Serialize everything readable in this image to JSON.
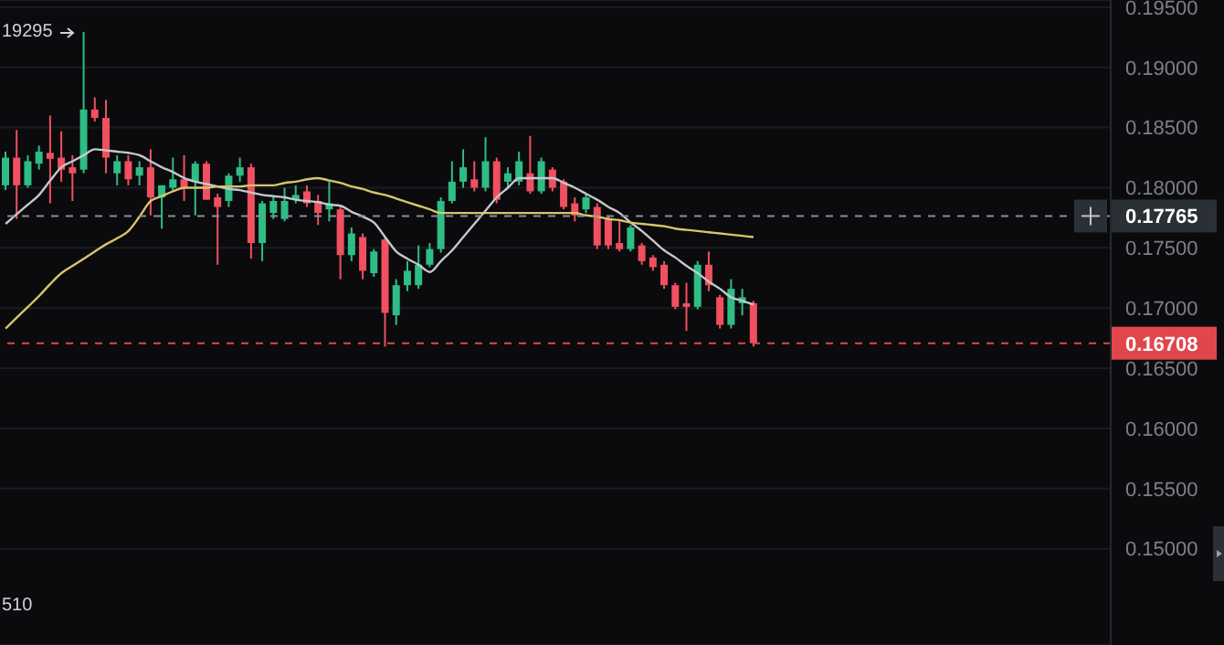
{
  "chart_data": {
    "type": "candlestick",
    "categories": [
      null,
      null,
      null,
      null,
      null,
      null,
      null,
      null,
      null,
      null,
      null,
      null,
      null,
      null,
      null,
      null,
      null,
      null,
      null,
      null,
      null,
      null,
      null,
      null,
      null,
      null,
      null,
      null,
      null,
      null,
      null,
      null,
      null,
      null,
      null,
      null,
      null,
      null,
      null,
      null,
      null,
      null,
      null,
      null,
      null,
      null,
      null,
      null,
      null,
      null,
      null,
      null,
      null,
      null,
      null,
      null,
      null,
      null,
      null,
      null,
      null,
      null,
      null,
      null,
      null,
      null,
      null,
      null
    ],
    "ohlc": [
      [
        0.1802,
        0.183,
        0.1798,
        0.1825
      ],
      [
        0.1825,
        0.1848,
        0.1774,
        0.1802
      ],
      [
        0.1802,
        0.1827,
        0.18,
        0.1822
      ],
      [
        0.182,
        0.1835,
        0.1815,
        0.183
      ],
      [
        0.1829,
        0.186,
        0.1787,
        0.1824
      ],
      [
        0.1825,
        0.1847,
        0.1805,
        0.1815
      ],
      [
        0.1817,
        0.1827,
        0.1789,
        0.1812
      ],
      [
        0.1815,
        0.19295,
        0.1812,
        0.1865
      ],
      [
        0.1865,
        0.1875,
        0.1855,
        0.1858
      ],
      [
        0.1858,
        0.1873,
        0.1812,
        0.1825
      ],
      [
        0.1812,
        0.1827,
        0.1802,
        0.1822
      ],
      [
        0.1822,
        0.1827,
        0.1802,
        0.1807
      ],
      [
        0.181,
        0.1822,
        0.1802,
        0.1817
      ],
      [
        0.1817,
        0.1832,
        0.1777,
        0.1792
      ],
      [
        0.1792,
        0.1802,
        0.1766,
        0.1802
      ],
      [
        0.18,
        0.1825,
        0.1797,
        0.1807
      ],
      [
        0.1807,
        0.1827,
        0.1789,
        0.18
      ],
      [
        0.1805,
        0.1822,
        0.1777,
        0.182
      ],
      [
        0.182,
        0.1822,
        0.179,
        0.179
      ],
      [
        0.1792,
        0.1795,
        0.1736,
        0.1784
      ],
      [
        0.1789,
        0.1812,
        0.1784,
        0.181
      ],
      [
        0.181,
        0.1825,
        0.1805,
        0.1817
      ],
      [
        0.1817,
        0.182,
        0.1741,
        0.1754
      ],
      [
        0.1754,
        0.1789,
        0.1739,
        0.1787
      ],
      [
        0.1779,
        0.1792,
        0.1774,
        0.1789
      ],
      [
        0.1774,
        0.18,
        0.1772,
        0.1789
      ],
      [
        0.179,
        0.1802,
        0.1787,
        0.1794
      ],
      [
        0.1797,
        0.1802,
        0.1784,
        0.1787
      ],
      [
        0.1789,
        0.1794,
        0.1769,
        0.1779
      ],
      [
        0.1782,
        0.1805,
        0.1772,
        0.1787
      ],
      [
        0.1782,
        0.1784,
        0.1724,
        0.1744
      ],
      [
        0.1744,
        0.1767,
        0.1739,
        0.1762
      ],
      [
        0.1759,
        0.1762,
        0.1724,
        0.1731
      ],
      [
        0.1729,
        0.1749,
        0.1726,
        0.1747
      ],
      [
        0.1757,
        0.1759,
        0.1668,
        0.1696
      ],
      [
        0.1694,
        0.1724,
        0.1686,
        0.1719
      ],
      [
        0.1719,
        0.1739,
        0.1714,
        0.1731
      ],
      [
        0.1719,
        0.1752,
        0.1716,
        0.1736
      ],
      [
        0.1736,
        0.1754,
        0.1734,
        0.1749
      ],
      [
        0.1749,
        0.1792,
        0.1746,
        0.1789
      ],
      [
        0.1789,
        0.1822,
        0.1787,
        0.1805
      ],
      [
        0.1805,
        0.1832,
        0.18,
        0.1817
      ],
      [
        0.1807,
        0.1822,
        0.1797,
        0.18
      ],
      [
        0.18,
        0.1842,
        0.1797,
        0.1822
      ],
      [
        0.1822,
        0.1825,
        0.1787,
        0.179
      ],
      [
        0.1805,
        0.1817,
        0.18,
        0.1812
      ],
      [
        0.1805,
        0.183,
        0.1802,
        0.1822
      ],
      [
        0.1812,
        0.1843,
        0.1795,
        0.1797
      ],
      [
        0.1797,
        0.1825,
        0.1795,
        0.1822
      ],
      [
        0.1815,
        0.1817,
        0.1797,
        0.18
      ],
      [
        0.1805,
        0.1807,
        0.1782,
        0.1784
      ],
      [
        0.1787,
        0.1792,
        0.1772,
        0.1777
      ],
      [
        0.1782,
        0.1795,
        0.1779,
        0.1792
      ],
      [
        0.1784,
        0.1787,
        0.1749,
        0.1752
      ],
      [
        0.1774,
        0.1777,
        0.1749,
        0.1752
      ],
      [
        0.1754,
        0.1772,
        0.1747,
        0.1749
      ],
      [
        0.1749,
        0.1769,
        0.1747,
        0.1767
      ],
      [
        0.1752,
        0.1754,
        0.1736,
        0.1739
      ],
      [
        0.1742,
        0.1744,
        0.1731,
        0.1734
      ],
      [
        0.1736,
        0.1739,
        0.1716,
        0.1719
      ],
      [
        0.1719,
        0.1721,
        0.1699,
        0.1701
      ],
      [
        0.1704,
        0.1721,
        0.1681,
        0.1701
      ],
      [
        0.1701,
        0.1739,
        0.1699,
        0.1736
      ],
      [
        0.1736,
        0.1747,
        0.1714,
        0.1719
      ],
      [
        0.1709,
        0.1711,
        0.1683,
        0.1686
      ],
      [
        0.1686,
        0.1724,
        0.1683,
        0.1716
      ],
      [
        0.1704,
        0.1716,
        0.1694,
        0.1709
      ],
      [
        0.1704,
        0.1706,
        0.1668,
        0.16708
      ]
    ],
    "series": [
      {
        "type": "line",
        "color": "#c4c7cc",
        "values": [
          0.177,
          0.1778,
          0.1786,
          0.1794,
          0.1806,
          0.1817,
          0.1822,
          0.1827,
          0.1832,
          0.1831,
          0.183,
          0.1829,
          0.1827,
          0.1822,
          0.1817,
          0.1813,
          0.1808,
          0.1805,
          0.1803,
          0.1801,
          0.1799,
          0.1798,
          0.1796,
          0.1794,
          0.1793,
          0.1792,
          0.179,
          0.1789,
          0.1788,
          0.1786,
          0.1785,
          0.178,
          0.1776,
          0.1771,
          0.1759,
          0.1747,
          0.1741,
          0.1736,
          0.173,
          0.1739,
          0.1748,
          0.1759,
          0.177,
          0.1781,
          0.1792,
          0.18,
          0.1808,
          0.1808,
          0.1808,
          0.1808,
          0.1804,
          0.18,
          0.1795,
          0.179,
          0.1784,
          0.1779,
          0.1771,
          0.1764,
          0.1756,
          0.1748,
          0.1742,
          0.1735,
          0.1729,
          0.1722,
          0.1716,
          0.1709,
          0.1706,
          0.1703
        ]
      },
      {
        "type": "line",
        "color": "#d6c56c",
        "values": [
          0.1683,
          0.1692,
          0.1701,
          0.171,
          0.172,
          0.1729,
          0.1735,
          0.1741,
          0.1747,
          0.1753,
          0.1758,
          0.1764,
          0.1776,
          0.1789,
          0.1793,
          0.1797,
          0.18,
          0.18,
          0.18,
          0.1801,
          0.1801,
          0.1801,
          0.1802,
          0.1802,
          0.1802,
          0.1804,
          0.1805,
          0.1807,
          0.1808,
          0.1806,
          0.1804,
          0.1801,
          0.1799,
          0.1796,
          0.1794,
          0.1791,
          0.1788,
          0.1785,
          0.1782,
          0.1779,
          0.1779,
          0.1779,
          0.1779,
          0.1779,
          0.1779,
          0.1779,
          0.1779,
          0.1779,
          0.1779,
          0.1779,
          0.1779,
          0.1779,
          0.1777,
          0.1776,
          0.1774,
          0.1773,
          0.1771,
          0.177,
          0.1769,
          0.1768,
          0.1766,
          0.1765,
          0.1764,
          0.1763,
          0.1762,
          0.1761,
          0.176,
          0.1759
        ]
      }
    ],
    "ylim": [
      0.142,
      0.1956
    ],
    "yticks": [
      {
        "value": 0.15,
        "label": "0.15000"
      },
      {
        "value": 0.155,
        "label": "0.15500"
      },
      {
        "value": 0.16,
        "label": "0.16000"
      },
      {
        "value": 0.165,
        "label": "0.16500"
      },
      {
        "value": 0.17,
        "label": "0.17000"
      },
      {
        "value": 0.175,
        "label": "0.17500"
      },
      {
        "value": 0.18,
        "label": "0.18000"
      },
      {
        "value": 0.185,
        "label": "0.18500"
      },
      {
        "value": 0.19,
        "label": "0.19000"
      },
      {
        "value": 0.195,
        "label": "0.19500"
      }
    ],
    "ref_lines": [
      {
        "axis": "y",
        "value": 0.17765,
        "label": "0.17765",
        "color": "#8a8e96",
        "line_style": "dashed"
      },
      {
        "axis": "y",
        "value": 0.16708,
        "label": "0.16708",
        "color": "#e0474c",
        "line_style": "dashed"
      }
    ],
    "annotations": [
      "19295",
      "510"
    ],
    "grid": "y",
    "tick_labels": "y"
  }
}
